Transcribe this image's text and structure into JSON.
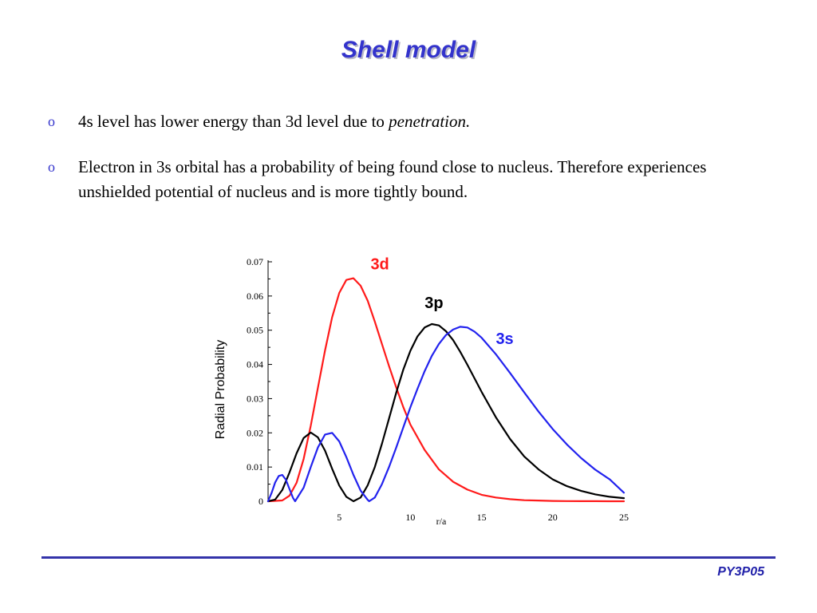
{
  "title": "Shell model",
  "bullets": [
    {
      "marker": "o",
      "text": "4s level has lower energy than 3d level due to ",
      "emphasis": "penetration."
    },
    {
      "marker": "o",
      "text": "Electron in 3s orbital has a probability of being found close to nucleus. Therefore experiences unshielded potential of nucleus and is more tightly bound."
    }
  ],
  "footer": {
    "code": "PY3P05"
  },
  "chart_data": {
    "type": "line",
    "ylabel": "Radial Probability",
    "xlabel": "r/a",
    "xlim": [
      0,
      25
    ],
    "ylim": [
      0,
      0.07
    ],
    "xticks": [
      "5",
      "10",
      "15",
      "20",
      "25"
    ],
    "yticks": [
      "0",
      "0.01",
      "0.02",
      "0.03",
      "0.04",
      "0.05",
      "0.06",
      "0.07"
    ],
    "grid": false,
    "series": [
      {
        "name": "3d",
        "color": "#ff1a1a",
        "x": [
          0,
          1,
          1.5,
          2,
          2.5,
          3,
          3.5,
          4,
          4.5,
          5,
          5.5,
          6,
          6.5,
          7,
          7.5,
          8,
          8.5,
          9,
          9.5,
          10,
          11,
          12,
          13,
          14,
          15,
          16,
          17,
          18,
          19,
          20,
          21,
          22,
          23,
          24,
          25
        ],
        "y": [
          0,
          0.00023,
          0.0016,
          0.0054,
          0.0124,
          0.0221,
          0.0331,
          0.0441,
          0.0538,
          0.0609,
          0.0647,
          0.0652,
          0.063,
          0.0586,
          0.0525,
          0.046,
          0.0395,
          0.0333,
          0.0275,
          0.0224,
          0.015,
          0.0093,
          0.0057,
          0.0034,
          0.0019,
          0.0011,
          0.0006,
          0.0003,
          0.0002,
          0.0001,
          5e-05,
          3e-05,
          2e-05,
          1e-05,
          1e-05
        ]
      },
      {
        "name": "3p",
        "color": "#000000",
        "x": [
          0,
          0.5,
          1,
          1.5,
          2,
          2.5,
          3,
          3.5,
          4,
          4.5,
          5,
          5.5,
          6,
          6.5,
          7,
          7.5,
          8,
          8.5,
          9,
          9.5,
          10,
          10.5,
          11,
          11.5,
          12,
          12.5,
          13,
          13.5,
          14,
          15,
          16,
          17,
          18,
          19,
          20,
          21,
          22,
          23,
          24,
          25
        ],
        "y": [
          0,
          0.0005,
          0.0033,
          0.0084,
          0.014,
          0.0185,
          0.0201,
          0.0187,
          0.0148,
          0.0095,
          0.0046,
          0.0013,
          0.0,
          0.0011,
          0.0047,
          0.01,
          0.0168,
          0.0242,
          0.0317,
          0.0385,
          0.044,
          0.0482,
          0.0508,
          0.0518,
          0.0514,
          0.0497,
          0.0471,
          0.0437,
          0.0399,
          0.032,
          0.0246,
          0.0182,
          0.0131,
          0.0093,
          0.0064,
          0.0044,
          0.003,
          0.002,
          0.0013,
          0.0009
        ]
      },
      {
        "name": "3s",
        "color": "#2222ee",
        "x": [
          0,
          0.25,
          0.5,
          0.75,
          1,
          1.25,
          1.5,
          1.75,
          1.9,
          2.5,
          3,
          3.5,
          4,
          4.5,
          5,
          5.5,
          6,
          6.5,
          7,
          7.1,
          7.5,
          8,
          8.5,
          9,
          9.5,
          10,
          10.5,
          11,
          11.5,
          12,
          12.5,
          13,
          13.5,
          14,
          14.5,
          15,
          16,
          17,
          18,
          19,
          20,
          21,
          22,
          23,
          24,
          25
        ],
        "y": [
          0,
          0.0025,
          0.0055,
          0.0074,
          0.0077,
          0.0063,
          0.0036,
          0.001,
          0.0,
          0.004,
          0.01,
          0.0157,
          0.0195,
          0.02,
          0.0175,
          0.0129,
          0.0077,
          0.0031,
          0.0004,
          0.0,
          0.0011,
          0.005,
          0.01,
          0.0157,
          0.0216,
          0.0275,
          0.0329,
          0.038,
          0.0425,
          0.046,
          0.0486,
          0.0502,
          0.051,
          0.0508,
          0.0496,
          0.0478,
          0.043,
          0.0375,
          0.0318,
          0.0262,
          0.0211,
          0.0166,
          0.0126,
          0.0092,
          0.0064,
          0.0025
        ]
      }
    ],
    "annotations": [
      {
        "text": "3d",
        "x": 7.2,
        "y": 0.0678,
        "color": "#ff1a1a"
      },
      {
        "text": "3p",
        "x": 11.0,
        "y": 0.0565,
        "color": "#000000"
      },
      {
        "text": "3s",
        "x": 16.0,
        "y": 0.046,
        "color": "#2222ee"
      }
    ]
  }
}
